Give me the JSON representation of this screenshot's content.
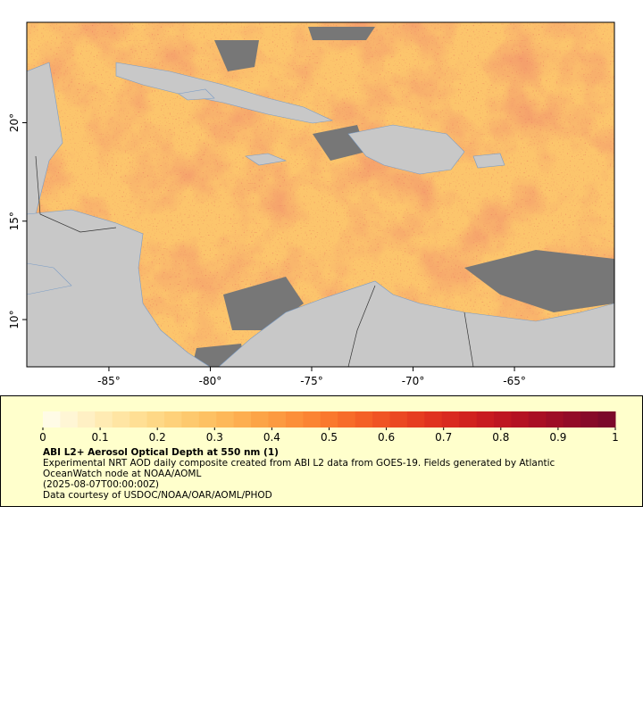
{
  "map": {
    "xlim": [
      -89.05,
      -60.07
    ],
    "ylim": [
      7.6,
      25.1
    ],
    "xticks": [
      {
        "value": -85,
        "label": "-85°"
      },
      {
        "value": -80,
        "label": "-80°"
      },
      {
        "value": -75,
        "label": "-75°"
      },
      {
        "value": -70,
        "label": "-70°"
      },
      {
        "value": -65,
        "label": "-65°"
      }
    ],
    "yticks": [
      {
        "value": 20,
        "label": "20°"
      },
      {
        "value": 15,
        "label": "15°"
      },
      {
        "value": 10,
        "label": "10°"
      }
    ]
  },
  "colorbar": {
    "range": [
      0,
      1
    ],
    "ticks": [
      0,
      0.1,
      0.2,
      0.3,
      0.4,
      0.5,
      0.6,
      0.7,
      0.8,
      0.9,
      1
    ],
    "colors": [
      "#fffbe6",
      "#fff6d5",
      "#fff0c4",
      "#ffebb3",
      "#ffe5a3",
      "#ffdf94",
      "#fed886",
      "#fed17a",
      "#fdc96e",
      "#fdc163",
      "#fdb859",
      "#fdae50",
      "#fca447",
      "#fc9a40",
      "#fc8f39",
      "#fb8433",
      "#fa782e",
      "#f76c2a",
      "#f46026",
      "#f05424",
      "#eb4822",
      "#e63d20",
      "#e0321f",
      "#d92a1f",
      "#d1221f",
      "#c81b20",
      "#be1621",
      "#b41222",
      "#a90f24",
      "#9e0d26",
      "#930b28",
      "#870a29",
      "#7b092a"
    ],
    "title": "ABI L2+ Aerosol Optical Depth at 550 nm (1)",
    "lines": [
      "Experimental NRT AOD daily composite created from ABI L2 data from GOES-19. Fields generated by Atlantic OceanWatch node at NOAA/AOML",
      "(2025-08-07T00:00:00Z)",
      "Data courtesy of USDOC/NOAA/OAR/AOML/PHOD"
    ]
  }
}
